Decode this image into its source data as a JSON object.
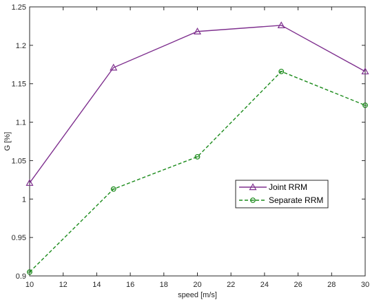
{
  "chart_data": {
    "type": "line",
    "title": "",
    "xlabel": "speed [m/s]",
    "ylabel": "G [%]",
    "xlim": [
      10,
      30
    ],
    "ylim": [
      0.9,
      1.25
    ],
    "xticks": [
      "10",
      "12",
      "14",
      "16",
      "18",
      "20",
      "22",
      "24",
      "26",
      "28",
      "30"
    ],
    "yticks": [
      "0.9",
      "0.95",
      "1",
      "1.05",
      "1.1",
      "1.15",
      "1.2",
      "1.25"
    ],
    "grid": false,
    "legend_position": "center-right",
    "series": [
      {
        "name": "Joint RRM",
        "x": [
          10,
          15,
          20,
          25,
          30
        ],
        "y": [
          1.021,
          1.171,
          1.218,
          1.226,
          1.166
        ],
        "color": "#7e2f8e",
        "line_style": "solid",
        "marker": "triangle"
      },
      {
        "name": "Separate RRM",
        "x": [
          10,
          15,
          20,
          25,
          30
        ],
        "y": [
          0.905,
          1.013,
          1.055,
          1.166,
          1.122
        ],
        "color": "#1a8a1a",
        "line_style": "dashed",
        "marker": "circle"
      }
    ]
  }
}
